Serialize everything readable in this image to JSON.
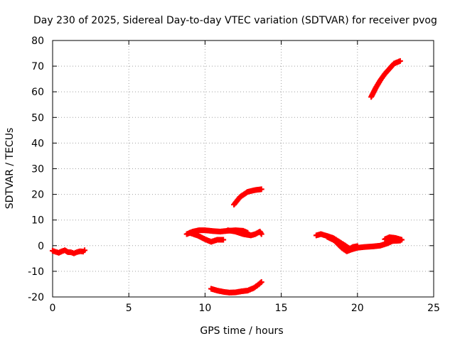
{
  "chart_data": {
    "type": "scatter",
    "title": "Day 230 of 2025, Sidereal Day-to-day VTEC variation (SDTVAR) for receiver pvog",
    "xlabel": "GPS time / hours",
    "ylabel": "SDTVAR / TECUs",
    "xlim": [
      0,
      25
    ],
    "ylim": [
      -20,
      80
    ],
    "xticks": [
      0,
      5,
      10,
      15,
      20,
      25
    ],
    "yticks": [
      -20,
      -10,
      0,
      10,
      20,
      30,
      40,
      50,
      60,
      70,
      80
    ],
    "grid": true,
    "marker": "plus",
    "color": "#ff0000",
    "series": [
      {
        "name": "arc-1",
        "points": [
          [
            0.0,
            -2.0
          ],
          [
            0.2,
            -2.4
          ],
          [
            0.4,
            -2.8
          ],
          [
            0.6,
            -2.2
          ],
          [
            0.8,
            -1.8
          ],
          [
            1.0,
            -2.5
          ],
          [
            1.2,
            -2.6
          ],
          [
            1.4,
            -3.0
          ],
          [
            1.6,
            -2.5
          ],
          [
            1.8,
            -2.2
          ],
          [
            2.0,
            -2.3
          ],
          [
            2.1,
            -1.8
          ]
        ]
      },
      {
        "name": "arc-2",
        "points": [
          [
            8.8,
            4.5
          ],
          [
            9.2,
            5.5
          ],
          [
            9.6,
            6.0
          ],
          [
            10.0,
            6.0
          ],
          [
            10.5,
            5.7
          ],
          [
            11.0,
            5.5
          ],
          [
            11.5,
            5.8
          ],
          [
            12.0,
            6.0
          ],
          [
            12.5,
            5.8
          ],
          [
            12.8,
            5.0
          ]
        ]
      },
      {
        "name": "arc-3",
        "points": [
          [
            9.0,
            5.0
          ],
          [
            9.5,
            4.0
          ],
          [
            10.0,
            2.5
          ],
          [
            10.4,
            1.5
          ],
          [
            10.8,
            2.3
          ],
          [
            11.2,
            2.3
          ]
        ]
      },
      {
        "name": "arc-4",
        "points": [
          [
            11.5,
            6.0
          ],
          [
            12.0,
            5.5
          ],
          [
            12.5,
            4.5
          ],
          [
            13.0,
            4.0
          ],
          [
            13.3,
            4.5
          ],
          [
            13.6,
            5.5
          ],
          [
            13.7,
            4.5
          ]
        ]
      },
      {
        "name": "arc-5",
        "points": [
          [
            11.9,
            16.0
          ],
          [
            12.3,
            19.0
          ],
          [
            12.8,
            21.0
          ],
          [
            13.3,
            21.7
          ],
          [
            13.7,
            22.0
          ]
        ]
      },
      {
        "name": "arc-6",
        "points": [
          [
            10.4,
            -16.8
          ],
          [
            10.8,
            -17.5
          ],
          [
            11.2,
            -18.0
          ],
          [
            11.6,
            -18.3
          ],
          [
            12.0,
            -18.2
          ],
          [
            12.4,
            -17.8
          ],
          [
            12.8,
            -17.5
          ],
          [
            13.2,
            -16.5
          ],
          [
            13.5,
            -15.2
          ],
          [
            13.7,
            -14.2
          ]
        ]
      },
      {
        "name": "arc-7",
        "points": [
          [
            17.3,
            4.0
          ],
          [
            17.6,
            4.5
          ],
          [
            18.0,
            3.8
          ],
          [
            18.4,
            3.0
          ],
          [
            18.8,
            1.5
          ],
          [
            19.2,
            0.0
          ],
          [
            19.5,
            -1.2
          ],
          [
            19.7,
            -0.5
          ],
          [
            20.0,
            -0.2
          ]
        ]
      },
      {
        "name": "arc-8",
        "points": [
          [
            18.0,
            3.5
          ],
          [
            18.5,
            2.0
          ],
          [
            19.0,
            -1.0
          ],
          [
            19.3,
            -2.2
          ],
          [
            19.6,
            -1.5
          ],
          [
            20.0,
            -0.8
          ],
          [
            20.5,
            -0.5
          ],
          [
            21.0,
            -0.3
          ],
          [
            21.5,
            0.0
          ],
          [
            22.0,
            1.0
          ],
          [
            22.3,
            1.8
          ],
          [
            22.8,
            2.0
          ]
        ]
      },
      {
        "name": "arc-9",
        "points": [
          [
            21.8,
            2.5
          ],
          [
            22.1,
            3.3
          ],
          [
            22.5,
            3.0
          ],
          [
            22.9,
            2.3
          ]
        ]
      },
      {
        "name": "arc-10",
        "points": [
          [
            20.9,
            58.0
          ],
          [
            21.2,
            61.5
          ],
          [
            21.5,
            64.5
          ],
          [
            21.8,
            67.0
          ],
          [
            22.1,
            69.0
          ],
          [
            22.4,
            71.0
          ],
          [
            22.8,
            72.0
          ]
        ]
      }
    ]
  }
}
